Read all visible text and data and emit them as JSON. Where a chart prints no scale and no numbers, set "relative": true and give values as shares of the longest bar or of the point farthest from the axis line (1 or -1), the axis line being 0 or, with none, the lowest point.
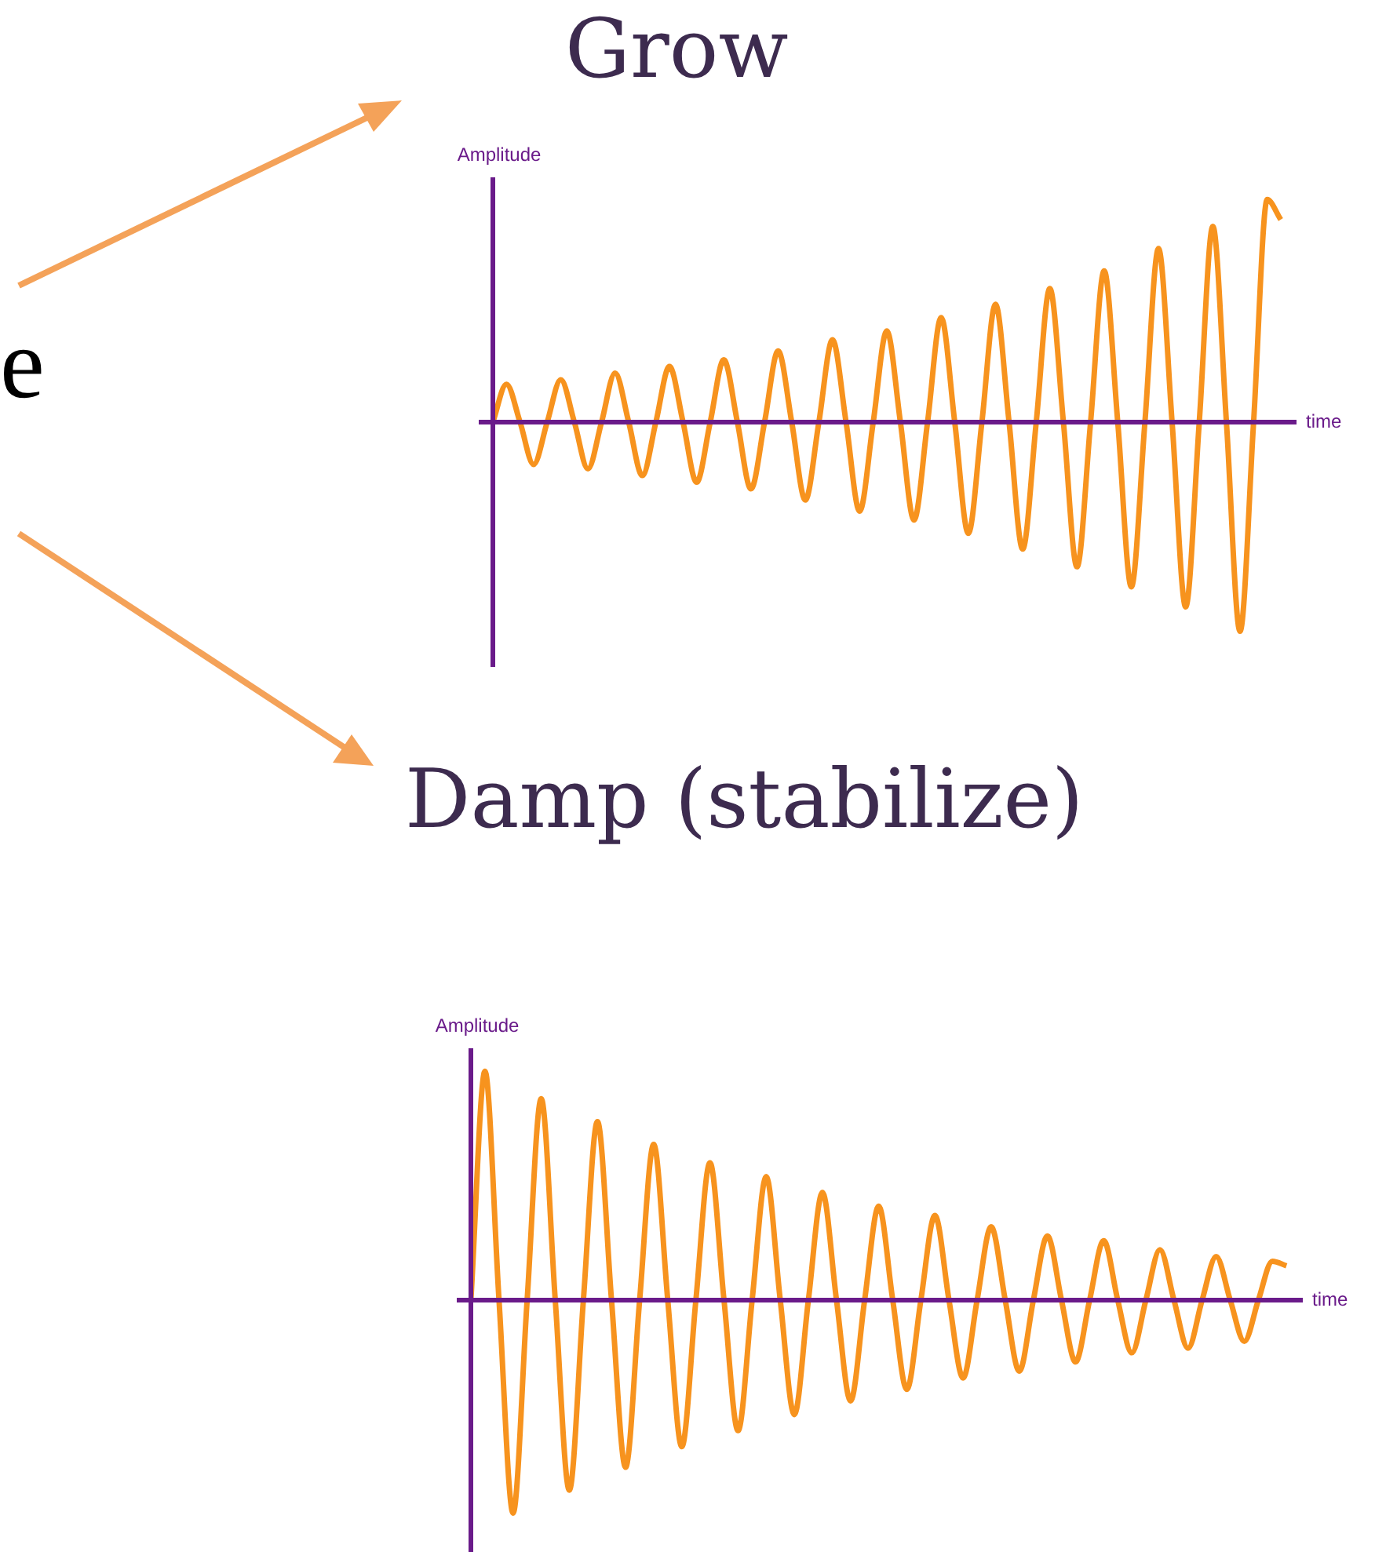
{
  "chart_data": [
    {
      "type": "line",
      "title": "Grow",
      "xlabel": "time",
      "ylabel": "Amplitude",
      "relative": true,
      "marker": "none",
      "color": "#f7931e",
      "annotations": [
        "e"
      ],
      "ref_lines": [
        {
          "axis": "y",
          "value": 0,
          "color": "#6a1b8a"
        }
      ],
      "categories": [
        null,
        null,
        null,
        null,
        null,
        null,
        null,
        null,
        null,
        null,
        null,
        null,
        null,
        null,
        null,
        null,
        null,
        null,
        null,
        null,
        null,
        null,
        null,
        null,
        null,
        null,
        null,
        null,
        null,
        null,
        null,
        null,
        null,
        null,
        null,
        null,
        null,
        null,
        null,
        null,
        null,
        null,
        null,
        null,
        null,
        null,
        null,
        null,
        null,
        null,
        null,
        null,
        null,
        null,
        null,
        null,
        null,
        null,
        null
      ],
      "values": [
        0,
        0.17,
        0,
        -0.19,
        0,
        0.19,
        0,
        -0.21,
        0,
        0.22,
        0,
        -0.24,
        0,
        0.25,
        0,
        -0.27,
        0,
        0.28,
        0,
        -0.3,
        0,
        0.32,
        0,
        -0.35,
        0,
        0.37,
        0,
        -0.4,
        0,
        0.41,
        0,
        -0.44,
        0,
        0.47,
        0,
        -0.5,
        0,
        0.53,
        0,
        -0.57,
        0,
        0.6,
        0,
        -0.65,
        0,
        0.68,
        0,
        -0.74,
        0,
        0.78,
        0,
        -0.83,
        0,
        0.88,
        0,
        -0.94,
        0,
        1,
        0.91
      ]
    },
    {
      "type": "line",
      "title": "Damp (stabilize)",
      "xlabel": "time",
      "ylabel": "Amplitude",
      "relative": true,
      "marker": "none",
      "color": "#f7931e",
      "ref_lines": [
        {
          "axis": "y",
          "value": 0,
          "color": "#6a1b8a"
        }
      ],
      "categories": [
        null,
        null,
        null,
        null,
        null,
        null,
        null,
        null,
        null,
        null,
        null,
        null,
        null,
        null,
        null,
        null,
        null,
        null,
        null,
        null,
        null,
        null,
        null,
        null,
        null,
        null,
        null,
        null,
        null,
        null,
        null,
        null,
        null,
        null,
        null,
        null,
        null,
        null,
        null,
        null,
        null,
        null,
        null,
        null,
        null,
        null,
        null,
        null,
        null,
        null,
        null,
        null,
        null,
        null,
        null,
        null,
        null,
        null,
        null
      ],
      "values": [
        0,
        1,
        0,
        -0.93,
        0,
        0.88,
        0,
        -0.83,
        0,
        0.78,
        0,
        -0.73,
        0,
        0.68,
        0,
        -0.64,
        0,
        0.6,
        0,
        -0.57,
        0,
        0.54,
        0,
        -0.5,
        0,
        0.47,
        0,
        -0.44,
        0,
        0.41,
        0,
        -0.39,
        0,
        0.37,
        0,
        -0.34,
        0,
        0.32,
        0,
        -0.31,
        0,
        0.28,
        0,
        -0.27,
        0,
        0.26,
        0,
        -0.23,
        0,
        0.22,
        0,
        -0.21,
        0,
        0.19,
        0,
        -0.18,
        0,
        0.17,
        0.15
      ]
    }
  ]
}
